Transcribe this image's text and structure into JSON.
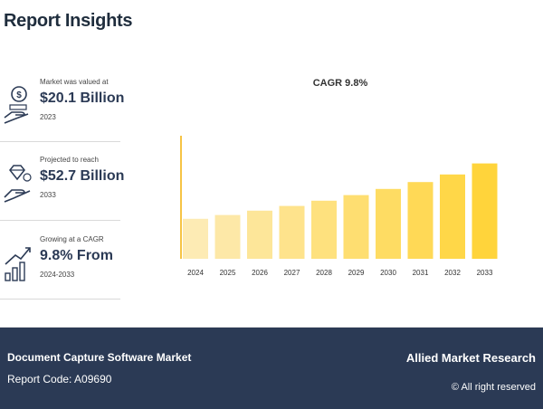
{
  "header": {
    "title": "Report Insights"
  },
  "stats": [
    {
      "label": "Market was valued at",
      "value": "$20.1 Billion",
      "year": "2023",
      "icon": "money-hand-icon"
    },
    {
      "label": "Projected to reach",
      "value": "$52.7 Billion",
      "year": "2033",
      "icon": "diamond-hand-icon"
    },
    {
      "label": "Growing at a CAGR",
      "value": "9.8% From",
      "year": "2024-2033",
      "icon": "growth-chart-icon"
    }
  ],
  "chart_data": {
    "type": "bar",
    "title": "CAGR 9.8%",
    "categories": [
      "2024",
      "2025",
      "2026",
      "2027",
      "2028",
      "2029",
      "2030",
      "2031",
      "2032",
      "2033"
    ],
    "values": [
      22.1,
      24.2,
      26.6,
      29.2,
      32.1,
      35.2,
      38.6,
      42.4,
      46.6,
      52.7
    ],
    "ylim": [
      0,
      60
    ],
    "xlabel": "",
    "ylabel": "",
    "colors": {
      "start": "#fdebb4",
      "end": "#ffd43b",
      "axis": "#f6c445"
    }
  },
  "footer": {
    "market": "Document Capture Software Market",
    "code": "Report Code: A09690",
    "brand": "Allied Market Research",
    "rights": "© All right reserved"
  },
  "colors": {
    "footer_bg": "#2b3a55",
    "title": "#1f2d3d"
  }
}
